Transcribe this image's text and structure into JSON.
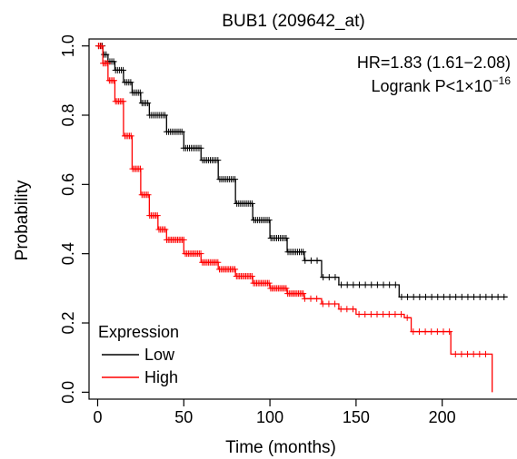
{
  "chart_data": {
    "type": "line",
    "subtype": "kaplan-meier survival curve",
    "title": "BUB1 (209642_at)",
    "xlabel": "Time (months)",
    "ylabel": "Probability",
    "xlim": [
      -5,
      245
    ],
    "ylim": [
      -0.02,
      1.02
    ],
    "x_ticks": [
      0,
      50,
      100,
      150,
      200
    ],
    "y_ticks": [
      0.0,
      0.2,
      0.4,
      0.6,
      0.8,
      1.0
    ],
    "x_tick_labels": [
      "0",
      "50",
      "100",
      "150",
      "200"
    ],
    "y_tick_labels": [
      "0.0",
      "0.2",
      "0.4",
      "0.6",
      "0.8",
      "1.0"
    ],
    "grid": false,
    "annotations": {
      "hr_text": "HR=1.83 (1.61−2.08)",
      "logrank_prefix": "Logrank P<1×10",
      "logrank_exponent": "−16"
    },
    "legend": {
      "title": "Expression",
      "position": "bottom-left"
    },
    "series": [
      {
        "name": "Low",
        "color": "#000000",
        "x": [
          0,
          3,
          6,
          10,
          15,
          20,
          25,
          30,
          40,
          50,
          60,
          70,
          80,
          90,
          100,
          110,
          120,
          130,
          140,
          150,
          160,
          170,
          175,
          180,
          200,
          220,
          238
        ],
        "y": [
          1.0,
          0.975,
          0.955,
          0.93,
          0.895,
          0.865,
          0.835,
          0.8,
          0.752,
          0.705,
          0.67,
          0.615,
          0.545,
          0.497,
          0.445,
          0.405,
          0.38,
          0.332,
          0.31,
          0.31,
          0.31,
          0.31,
          0.275,
          0.275,
          0.275,
          0.275,
          0.275
        ]
      },
      {
        "name": "High",
        "color": "#ff0000",
        "x": [
          0,
          3,
          6,
          10,
          15,
          20,
          25,
          30,
          35,
          40,
          50,
          60,
          70,
          80,
          90,
          100,
          110,
          120,
          130,
          140,
          150,
          160,
          170,
          178,
          182,
          190,
          198,
          205,
          215,
          228,
          229
        ],
        "y": [
          1.0,
          0.95,
          0.9,
          0.84,
          0.74,
          0.645,
          0.57,
          0.51,
          0.47,
          0.44,
          0.4,
          0.375,
          0.355,
          0.335,
          0.315,
          0.3,
          0.285,
          0.27,
          0.255,
          0.24,
          0.225,
          0.225,
          0.225,
          0.215,
          0.175,
          0.175,
          0.175,
          0.11,
          0.11,
          0.11,
          0.0
        ]
      }
    ]
  }
}
